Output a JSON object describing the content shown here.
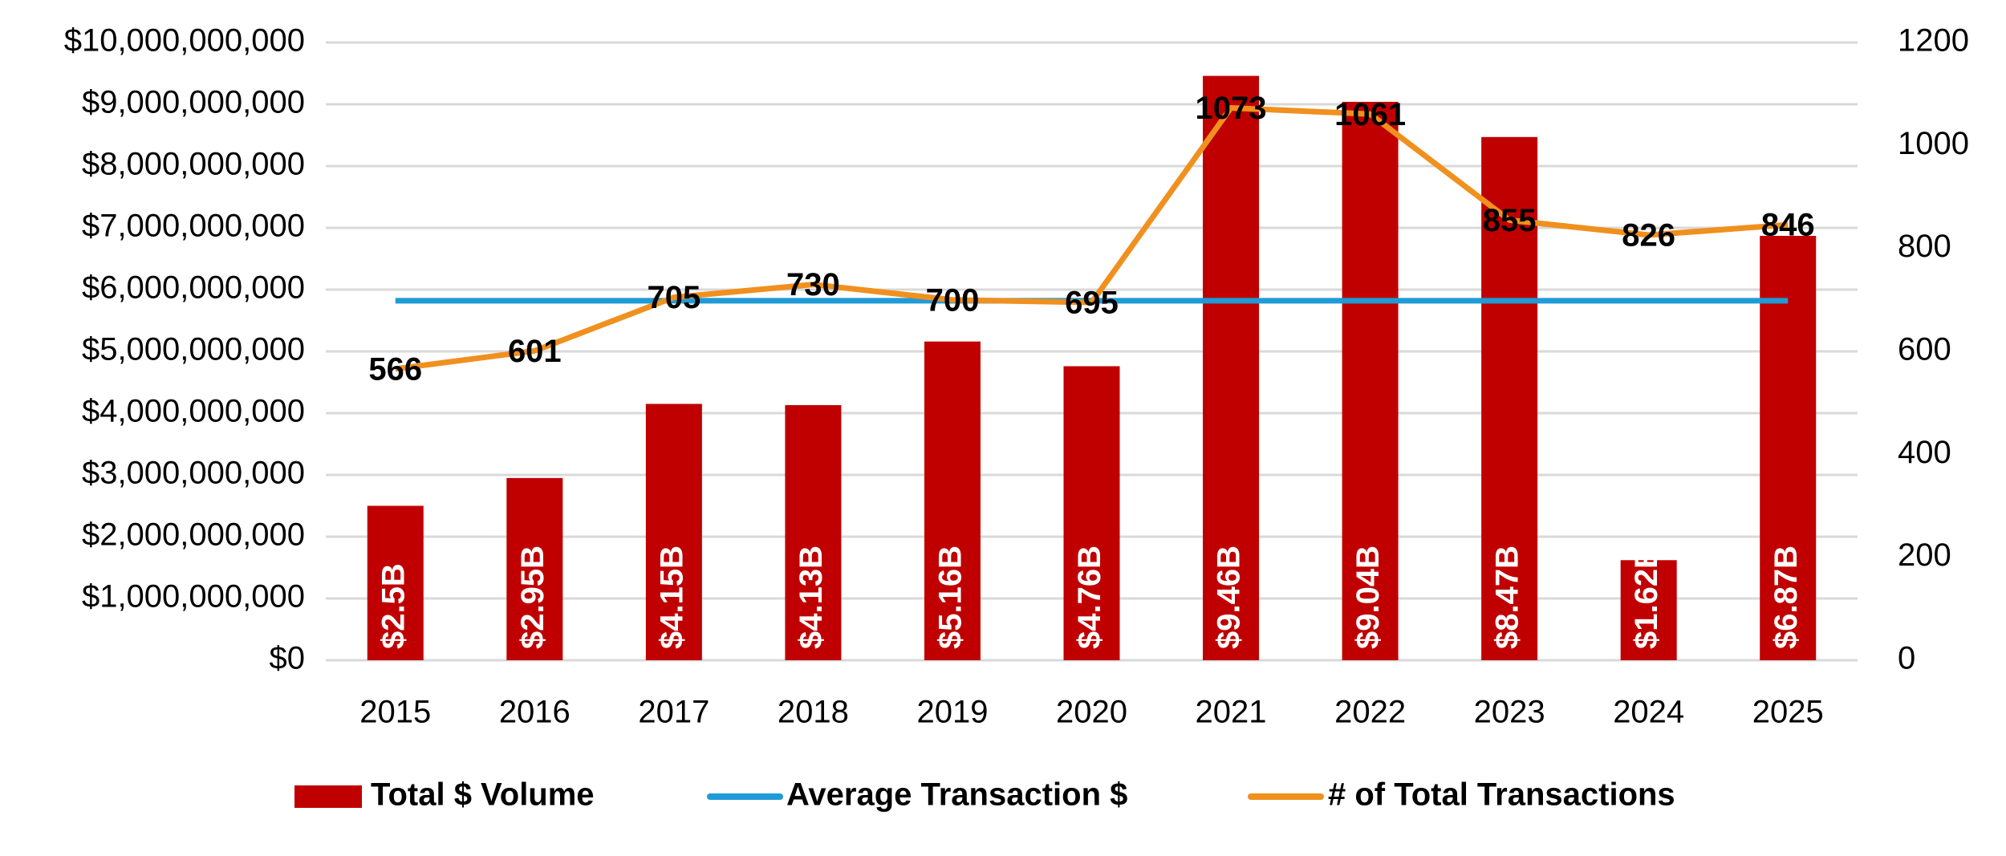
{
  "chart_data": {
    "type": "bar",
    "categories": [
      "2015",
      "2016",
      "2017",
      "2018",
      "2019",
      "2020",
      "2021",
      "2022",
      "2023",
      "2024",
      "2025"
    ],
    "series": [
      {
        "name": "Total $ Volume",
        "type": "bar",
        "color": "#c00000",
        "values": [
          2500000000,
          2950000000,
          4150000000,
          4130000000,
          5160000000,
          4760000000,
          9460000000,
          9040000000,
          8470000000,
          1620000000,
          6870000000
        ],
        "value_labels": [
          "$2.5B",
          "$2.95B",
          "$4.15B",
          "$4.13B",
          "$5.16B",
          "$4.76B",
          "$9.46B",
          "$9.04B",
          "$8.47B",
          "$1.62B",
          "$6.87B"
        ]
      },
      {
        "name": "Average Transaction $",
        "type": "line",
        "color": "#1f9bd7",
        "values": [
          5820000000,
          5820000000,
          5820000000,
          5820000000,
          5820000000,
          5820000000,
          5820000000,
          5820000000,
          5820000000,
          5820000000,
          5820000000
        ]
      },
      {
        "name": "# of Total Transactions",
        "type": "line",
        "axis": "y2",
        "color": "#f0901e",
        "values": [
          566,
          601,
          705,
          730,
          700,
          695,
          1073,
          1061,
          855,
          826,
          846
        ]
      }
    ],
    "ylim": [
      0,
      10000000000
    ],
    "yticks": [
      {
        "value": 0,
        "label": "$0"
      },
      {
        "value": 1000000000,
        "label": "$1,000,000,000"
      },
      {
        "value": 2000000000,
        "label": "$2,000,000,000"
      },
      {
        "value": 3000000000,
        "label": "$3,000,000,000"
      },
      {
        "value": 4000000000,
        "label": "$4,000,000,000"
      },
      {
        "value": 5000000000,
        "label": "$5,000,000,000"
      },
      {
        "value": 6000000000,
        "label": "$6,000,000,000"
      },
      {
        "value": 7000000000,
        "label": "$7,000,000,000"
      },
      {
        "value": 8000000000,
        "label": "$8,000,000,000"
      },
      {
        "value": 9000000000,
        "label": "$9,000,000,000"
      },
      {
        "value": 10000000000,
        "label": "$10,000,000,000"
      }
    ],
    "y2lim": [
      0,
      1200
    ],
    "y2ticks": [
      0,
      200,
      400,
      600,
      800,
      1000,
      1200
    ],
    "grid": true,
    "legend": "bottom"
  }
}
